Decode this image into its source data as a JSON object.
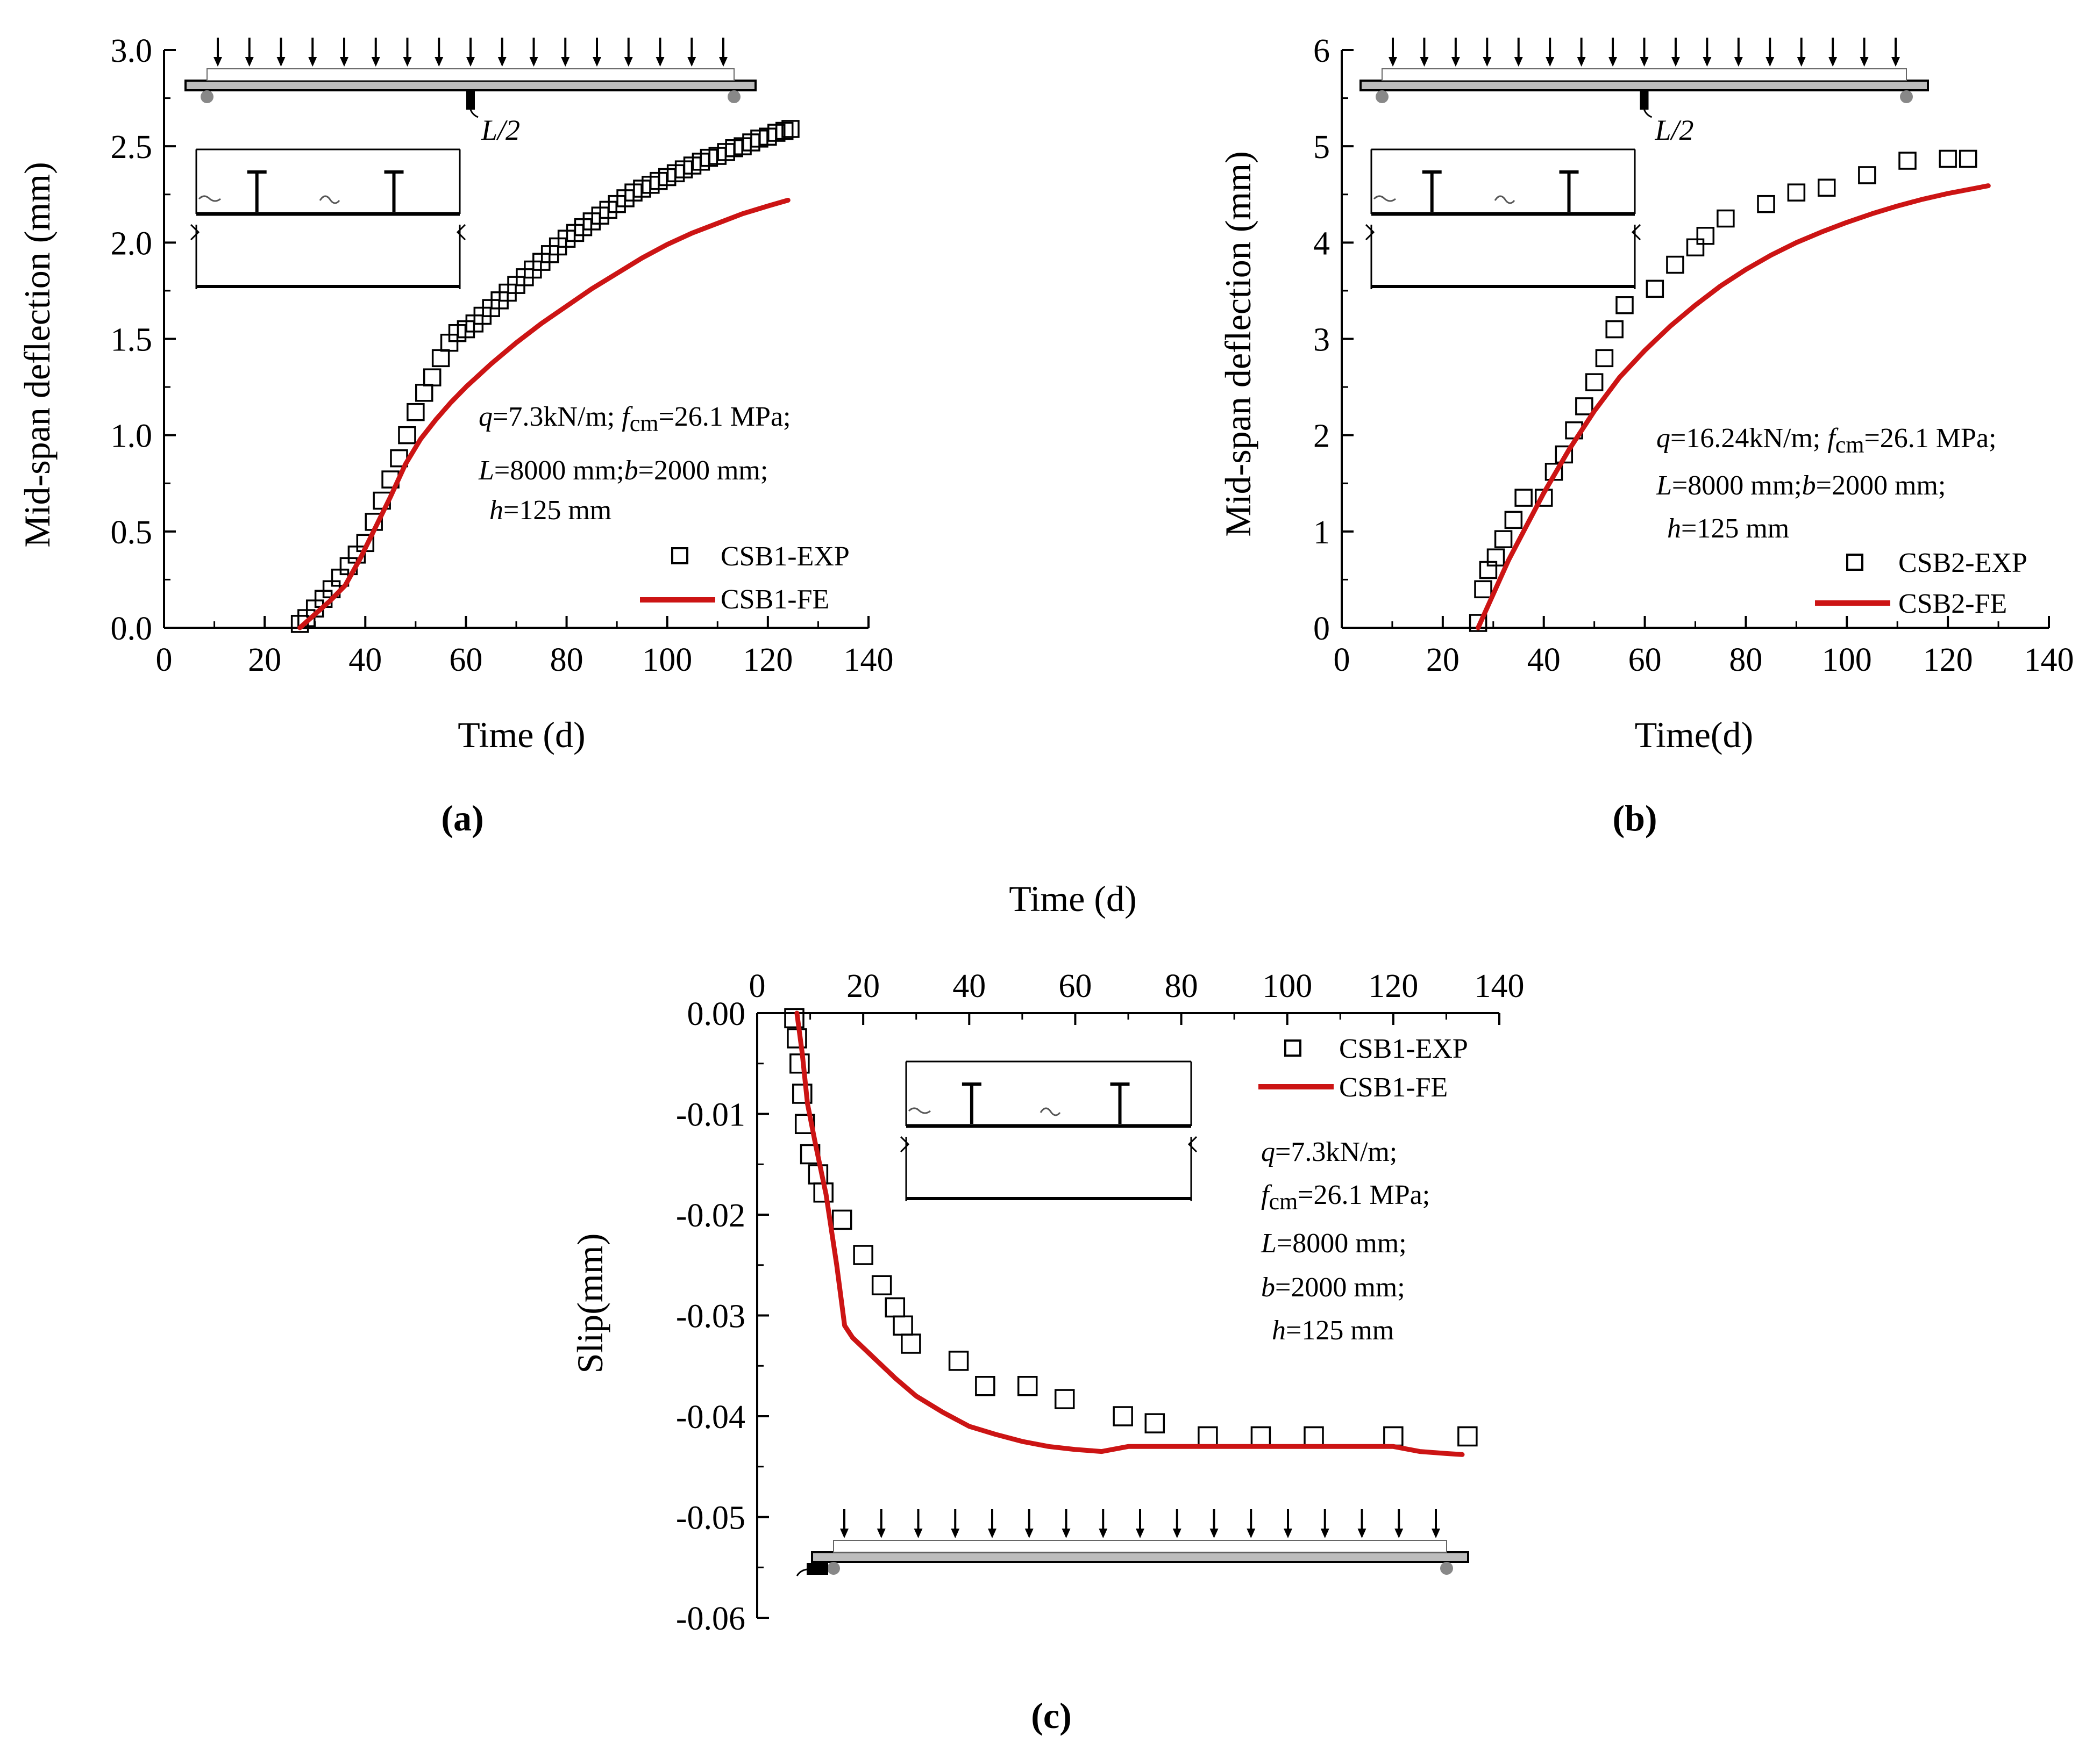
{
  "colors": {
    "exp_marker": "#000000",
    "fe_line": "#cc1414",
    "axis": "#000000",
    "beam_fill": "#bdbdbd"
  },
  "chart_data": [
    {
      "panel_label": "(a)",
      "type": "line",
      "xlabel": "Time (d)",
      "ylabel": "Mid-span deflection (mm)",
      "xlim": [
        0,
        140
      ],
      "ylim": [
        0,
        3.0
      ],
      "x_ticks": [
        "0",
        "20",
        "40",
        "60",
        "80",
        "100",
        "120",
        "140"
      ],
      "y_ticks": [
        "0.0",
        "0.5",
        "1.0",
        "1.5",
        "2.0",
        "2.5",
        "3.0"
      ],
      "legend_position": "lower-right",
      "annotation": {
        "q": "7.3kN/m",
        "fcm": "26.1 MPa",
        "L": "8000 mm",
        "b": "2000 mm",
        "h": "125 mm"
      },
      "schematic_label": "L/2",
      "series": [
        {
          "name": "CSB1-EXP",
          "style": "open-square",
          "x": [
            27,
            28.3,
            30,
            31.7,
            33.3,
            35,
            36.7,
            38.3,
            40,
            41.7,
            43.3,
            45,
            46.7,
            48.3,
            50,
            51.7,
            53.3,
            55,
            56.7,
            58.3,
            60,
            61.7,
            63.3,
            65,
            66.7,
            68.3,
            70,
            71.7,
            73.3,
            75,
            76.7,
            78.3,
            80,
            81.7,
            83.3,
            85,
            86.7,
            88.3,
            90,
            91.7,
            93.3,
            95,
            96.7,
            98.3,
            100,
            101.7,
            103.3,
            105,
            106.7,
            108.3,
            110,
            111.7,
            113.3,
            115,
            116.7,
            118.3,
            120,
            121.7,
            123.3,
            124.5
          ],
          "y": [
            0.02,
            0.05,
            0.1,
            0.15,
            0.2,
            0.26,
            0.32,
            0.38,
            0.44,
            0.55,
            0.66,
            0.77,
            0.88,
            1.0,
            1.12,
            1.22,
            1.3,
            1.4,
            1.48,
            1.53,
            1.55,
            1.58,
            1.62,
            1.66,
            1.7,
            1.74,
            1.78,
            1.82,
            1.86,
            1.9,
            1.94,
            1.98,
            2.02,
            2.05,
            2.08,
            2.11,
            2.14,
            2.17,
            2.2,
            2.23,
            2.26,
            2.28,
            2.3,
            2.32,
            2.34,
            2.36,
            2.38,
            2.4,
            2.42,
            2.44,
            2.45,
            2.47,
            2.49,
            2.5,
            2.52,
            2.54,
            2.55,
            2.57,
            2.58,
            2.59
          ]
        },
        {
          "name": "CSB1-FE",
          "style": "line",
          "x": [
            27,
            30,
            33,
            36,
            39,
            42,
            45,
            48,
            51,
            54,
            57,
            60,
            65,
            70,
            75,
            80,
            85,
            90,
            95,
            100,
            105,
            110,
            115,
            120,
            124
          ],
          "y": [
            0,
            0.07,
            0.14,
            0.22,
            0.36,
            0.52,
            0.68,
            0.85,
            0.98,
            1.08,
            1.17,
            1.25,
            1.37,
            1.48,
            1.58,
            1.67,
            1.76,
            1.84,
            1.92,
            1.99,
            2.05,
            2.1,
            2.15,
            2.19,
            2.22
          ]
        }
      ]
    },
    {
      "panel_label": "(b)",
      "type": "line",
      "xlabel": "Time(d)",
      "ylabel": "Mid-span deflection (mm)",
      "xlim": [
        0,
        140
      ],
      "ylim": [
        0,
        6
      ],
      "x_ticks": [
        "0",
        "20",
        "40",
        "60",
        "80",
        "100",
        "120",
        "140"
      ],
      "y_ticks": [
        "0",
        "1",
        "2",
        "3",
        "4",
        "5",
        "6"
      ],
      "legend_position": "lower-right",
      "annotation": {
        "q": "16.24kN/m",
        "fcm": "26.1 MPa",
        "L": "8000 mm",
        "b": "2000 mm",
        "h": "125 mm"
      },
      "schematic_label": "L/2",
      "series": [
        {
          "name": "CSB2-EXP",
          "style": "open-square",
          "x": [
            27,
            28,
            29,
            30.5,
            32,
            34,
            36,
            40,
            42,
            44,
            46,
            48,
            50,
            52,
            54,
            56,
            62,
            66,
            70,
            72,
            76,
            84,
            90,
            96,
            104,
            112,
            120,
            124
          ],
          "y": [
            0.05,
            0.4,
            0.6,
            0.73,
            0.92,
            1.12,
            1.35,
            1.35,
            1.62,
            1.8,
            2.05,
            2.3,
            2.55,
            2.8,
            3.1,
            3.35,
            3.52,
            3.77,
            3.95,
            4.07,
            4.25,
            4.4,
            4.52,
            4.57,
            4.7,
            4.85,
            4.87,
            4.87
          ]
        },
        {
          "name": "CSB2-FE",
          "style": "line",
          "x": [
            27,
            30,
            33,
            36,
            40,
            45,
            50,
            55,
            60,
            65,
            70,
            75,
            80,
            85,
            90,
            95,
            100,
            105,
            110,
            115,
            120,
            125,
            128
          ],
          "y": [
            0,
            0.35,
            0.7,
            1.0,
            1.4,
            1.85,
            2.25,
            2.6,
            2.88,
            3.13,
            3.35,
            3.55,
            3.72,
            3.87,
            4.0,
            4.11,
            4.21,
            4.3,
            4.38,
            4.45,
            4.51,
            4.56,
            4.59
          ]
        }
      ]
    },
    {
      "panel_label": "(c)",
      "type": "line",
      "xlabel": "Time (d)",
      "ylabel": "Slip(mm)",
      "xlim": [
        0,
        140
      ],
      "ylim": [
        -0.06,
        0.0
      ],
      "x_ticks": [
        "0",
        "20",
        "40",
        "60",
        "80",
        "100",
        "120",
        "140"
      ],
      "y_ticks": [
        "0.00",
        "-0.01",
        "-0.02",
        "-0.03",
        "-0.04",
        "-0.05",
        "-0.06"
      ],
      "x_axis_position": "top",
      "legend_position": "top-right",
      "annotation": {
        "q": "7.3kN/m;",
        "fcm": "26.1 MPa;",
        "L": "8000 mm;",
        "b": "2000 mm;",
        "h": "125 mm"
      },
      "series": [
        {
          "name": "CSB1-EXP",
          "style": "open-square",
          "x": [
            7,
            7.5,
            8,
            8.5,
            9,
            10,
            11.5,
            12.5,
            16,
            20,
            23.5,
            26,
            27.5,
            29,
            38,
            43,
            51,
            58,
            69,
            75,
            85,
            95,
            105,
            120,
            134
          ],
          "y": [
            -0.0005,
            -0.0025,
            -0.005,
            -0.008,
            -0.011,
            -0.014,
            -0.016,
            -0.0178,
            -0.0205,
            -0.024,
            -0.027,
            -0.0292,
            -0.031,
            -0.0328,
            -0.0345,
            -0.037,
            -0.037,
            -0.0383,
            -0.04,
            -0.0407,
            -0.042,
            -0.042,
            -0.042,
            -0.042,
            -0.042
          ]
        },
        {
          "name": "CSB1-FE",
          "style": "line",
          "x": [
            7.5,
            8.5,
            9.5,
            11,
            13,
            15,
            16.5,
            18,
            22,
            26,
            30,
            35,
            40,
            45,
            50,
            55,
            60,
            65,
            70,
            75,
            80,
            90,
            100,
            110,
            120,
            125,
            130,
            133
          ],
          "y": [
            0,
            -0.004,
            -0.009,
            -0.013,
            -0.018,
            -0.025,
            -0.031,
            -0.0322,
            -0.0342,
            -0.0362,
            -0.038,
            -0.0396,
            -0.041,
            -0.0418,
            -0.0425,
            -0.043,
            -0.0433,
            -0.0435,
            -0.043,
            -0.043,
            -0.043,
            -0.043,
            -0.043,
            -0.043,
            -0.043,
            -0.0435,
            -0.0437,
            -0.0438
          ]
        }
      ]
    }
  ]
}
